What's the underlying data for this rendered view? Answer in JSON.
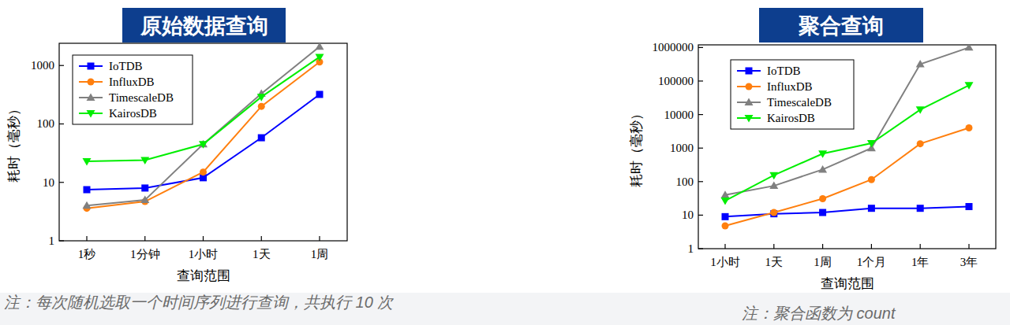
{
  "chart_data": [
    {
      "type": "line",
      "title": "原始数据查询",
      "x_label": "查询范围",
      "y_label": "耗时（毫秒）",
      "annotation": "注：每次随机选取一个时间序列进行查询，共执行 10 次",
      "categories": [
        "1秒",
        "1分钟",
        "1小时",
        "1天",
        "1周"
      ],
      "series": [
        {
          "name": "IoTDB",
          "color": "#0000ff",
          "marker": "square",
          "values": [
            7.5,
            8,
            12,
            58,
            320
          ]
        },
        {
          "name": "InfluxDB",
          "color": "#ff7f0e",
          "marker": "circle",
          "values": [
            3.6,
            4.7,
            15,
            200,
            1150
          ]
        },
        {
          "name": "TimescaleDB",
          "color": "#808080",
          "marker": "triangle",
          "values": [
            4,
            5,
            45,
            330,
            2100
          ]
        },
        {
          "name": "KairosDB",
          "color": "#00ee00",
          "marker": "triangle-down",
          "values": [
            23,
            24,
            45,
            290,
            1400
          ]
        }
      ],
      "ylim": [
        1,
        2400
      ],
      "yticks": [
        1,
        10,
        100,
        1000
      ],
      "log": "y",
      "legend": "top-left"
    },
    {
      "type": "line",
      "title": "聚合查询",
      "x_label": "查询范围",
      "y_label": "耗时（毫秒）",
      "annotation": "注：聚合函数为 count",
      "categories": [
        "1小时",
        "1天",
        "1周",
        "1个月",
        "1年",
        "3年"
      ],
      "series": [
        {
          "name": "IoTDB",
          "color": "#0000ff",
          "marker": "square",
          "values": [
            9,
            11,
            12,
            16,
            16,
            18
          ]
        },
        {
          "name": "InfluxDB",
          "color": "#ff7f0e",
          "marker": "circle",
          "values": [
            4.8,
            12,
            31,
            115,
            1350,
            4000
          ]
        },
        {
          "name": "TimescaleDB",
          "color": "#808080",
          "marker": "triangle",
          "values": [
            40,
            75,
            230,
            1000,
            320000,
            1000000
          ]
        },
        {
          "name": "KairosDB",
          "color": "#00ee00",
          "marker": "triangle-down",
          "values": [
            27,
            155,
            680,
            1400,
            14000,
            75000
          ]
        }
      ],
      "ylim": [
        1,
        1200000
      ],
      "yticks": [
        1,
        10,
        100,
        1000,
        10000,
        100000,
        1000000
      ],
      "log": "y",
      "legend": "top-left"
    }
  ]
}
